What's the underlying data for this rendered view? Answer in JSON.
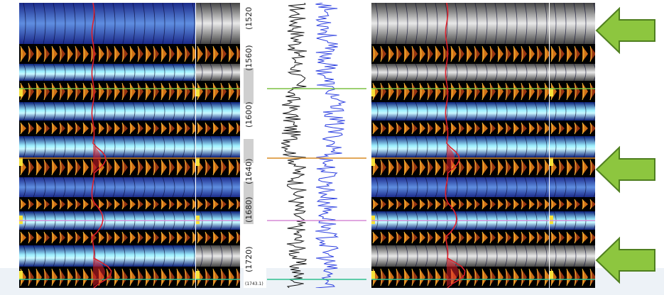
{
  "figure": {
    "depth_labels": [
      "(1520",
      "(1560)",
      "(1600)",
      "(1640)",
      "(1680)",
      "(1720)"
    ],
    "end_depth_label": "(1743.1)",
    "horizon_colors": [
      "#7bc142",
      "#d98c24",
      "#d68ad6",
      "#2fbf8f"
    ],
    "arrow_color": "#8dc63f",
    "log_colors": [
      "#111111",
      "#2c3fe0"
    ],
    "curve_color": "#e0202a"
  }
}
